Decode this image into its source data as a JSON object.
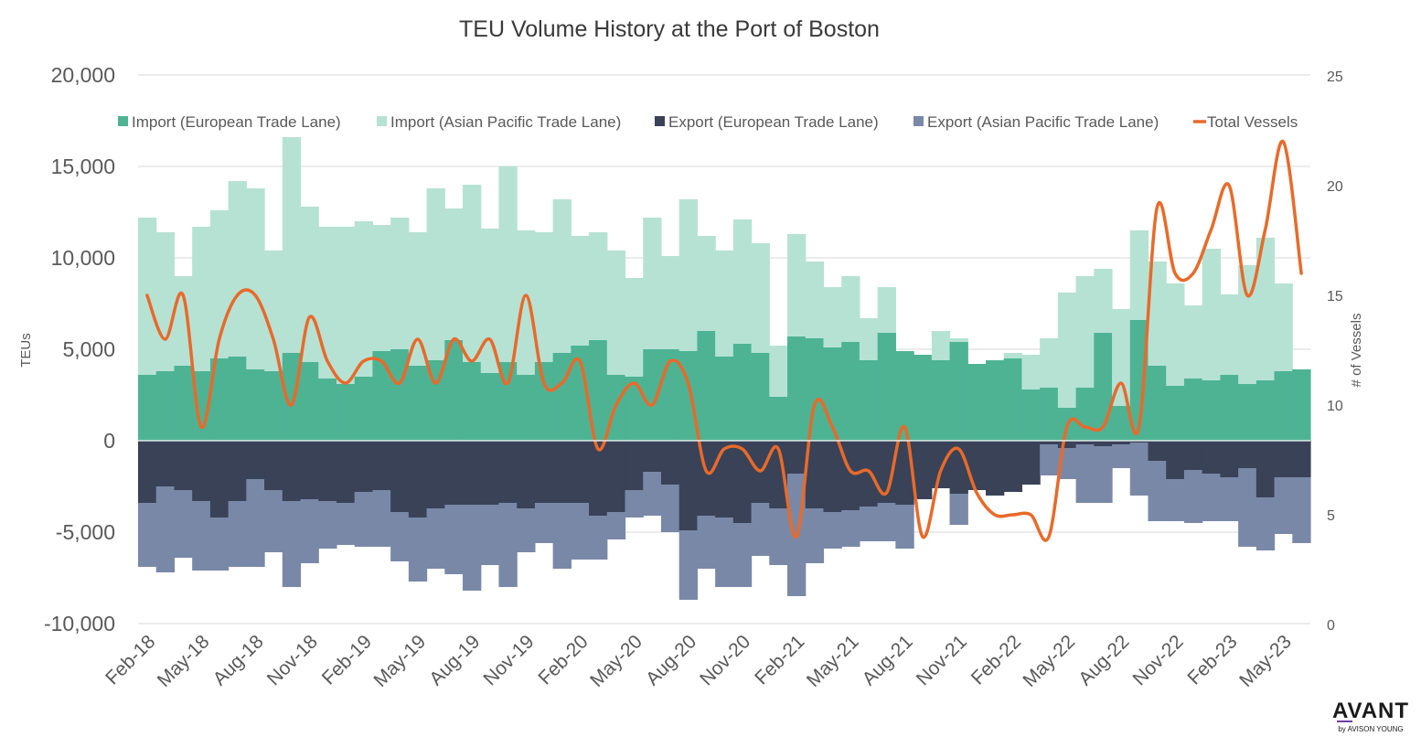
{
  "chart_data": {
    "type": "bar",
    "title": "TEU Volume History at the Port of Boston",
    "ylabel": "TEUs",
    "y2label": "# of Vessels",
    "ylim": [
      -10000,
      20000
    ],
    "y2lim": [
      0,
      25
    ],
    "y_ticks": [
      "20,000",
      "15,000",
      "10,000",
      "5,000",
      "0",
      "-5,000",
      "-10,000"
    ],
    "y2_ticks": [
      "25",
      "20",
      "15",
      "10",
      "5",
      "0"
    ],
    "grid": true,
    "legend_position": "top",
    "x_tick_labels": [
      "Feb-18",
      "May-18",
      "Aug-18",
      "Nov-18",
      "Feb-19",
      "May-19",
      "Aug-19",
      "Nov-19",
      "Feb-20",
      "May-20",
      "Aug-20",
      "Nov-20",
      "Feb-21",
      "May-21",
      "Aug-21",
      "Nov-21",
      "Feb-22",
      "May-22",
      "Aug-22",
      "Nov-22",
      "Feb-23",
      "May-23"
    ],
    "months": [
      "Feb-18",
      "Mar-18",
      "Apr-18",
      "May-18",
      "Jun-18",
      "Jul-18",
      "Aug-18",
      "Sep-18",
      "Oct-18",
      "Nov-18",
      "Dec-18",
      "Jan-19",
      "Feb-19",
      "Mar-19",
      "Apr-19",
      "May-19",
      "Jun-19",
      "Jul-19",
      "Aug-19",
      "Sep-19",
      "Oct-19",
      "Nov-19",
      "Dec-19",
      "Jan-20",
      "Feb-20",
      "Mar-20",
      "Apr-20",
      "May-20",
      "Jun-20",
      "Jul-20",
      "Aug-20",
      "Sep-20",
      "Oct-20",
      "Nov-20",
      "Dec-20",
      "Jan-21",
      "Feb-21",
      "Mar-21",
      "Apr-21",
      "May-21",
      "Jun-21",
      "Jul-21",
      "Aug-21",
      "Sep-21",
      "Oct-21",
      "Nov-21",
      "Dec-21",
      "Jan-22",
      "Feb-22",
      "Mar-22",
      "Apr-22",
      "May-22",
      "Jun-22",
      "Jul-22",
      "Aug-22",
      "Sep-22",
      "Oct-22",
      "Nov-22",
      "Dec-22",
      "Jan-23",
      "Feb-23",
      "Mar-23",
      "Apr-23",
      "May-23",
      "Jun-23"
    ],
    "series": [
      {
        "name": "Import (European Trade Lane)",
        "color": "#4db393",
        "kind": "bar",
        "stack": "import",
        "values": [
          3600,
          3800,
          4100,
          3800,
          4500,
          4600,
          3900,
          3800,
          4800,
          4300,
          3400,
          3100,
          3500,
          4900,
          5000,
          4100,
          4400,
          5500,
          4300,
          3700,
          4300,
          3600,
          4300,
          4800,
          5200,
          5500,
          3600,
          3500,
          5000,
          5000,
          4900,
          6000,
          4600,
          5300,
          4800,
          2400,
          5700,
          5600,
          5100,
          5400,
          4400,
          5900,
          4900,
          4700,
          4400,
          5400,
          4200,
          4400,
          4500,
          2800,
          2900,
          1800,
          2900,
          5900,
          1900,
          6600,
          4100,
          3000,
          3400,
          3300,
          3600,
          3100,
          3300,
          3800,
          3900
        ]
      },
      {
        "name": "Import (Asian Pacific Trade Lane)",
        "color": "#b6e2d4",
        "kind": "bar",
        "stack": "import",
        "values": [
          8600,
          7600,
          4900,
          7900,
          8100,
          9600,
          9900,
          6600,
          11800,
          8500,
          8300,
          8600,
          8500,
          6900,
          7200,
          7300,
          9400,
          7200,
          9700,
          7900,
          10700,
          7900,
          7100,
          8400,
          6000,
          5900,
          6800,
          5400,
          7200,
          5100,
          8300,
          5200,
          5800,
          6800,
          6000,
          2800,
          5600,
          4200,
          3300,
          3600,
          2300,
          2500,
          0,
          0,
          1600,
          200,
          0,
          0,
          300,
          1900,
          2700,
          6300,
          6100,
          3500,
          5300,
          4900,
          5700,
          5600,
          4000,
          7200,
          4400,
          6500,
          7800,
          4800,
          0
        ]
      },
      {
        "name": "Export (European Trade Lane)",
        "color": "#394257",
        "kind": "bar",
        "stack": "export",
        "values": [
          -3400,
          -2500,
          -2700,
          -3300,
          -4200,
          -3300,
          -2100,
          -2700,
          -3300,
          -3200,
          -3300,
          -3400,
          -2800,
          -2700,
          -3900,
          -4200,
          -3700,
          -3500,
          -3500,
          -3500,
          -3400,
          -3700,
          -3400,
          -3400,
          -3400,
          -4100,
          -3900,
          -2700,
          -1700,
          -2400,
          -4900,
          -4100,
          -4200,
          -4500,
          -3400,
          -3700,
          -1800,
          -3700,
          -3900,
          -3800,
          -3600,
          -3400,
          -3500,
          -3200,
          -2600,
          -2900,
          -2700,
          -3000,
          -2800,
          -2400,
          -200,
          -400,
          -200,
          -300,
          -200,
          -100,
          -1100,
          -2100,
          -1600,
          -1800,
          -2000,
          -1500,
          -3100,
          -2000,
          -2000
        ]
      },
      {
        "name": "Export (Asian Pacific Trade Lane)",
        "color": "#7a88a8",
        "kind": "bar",
        "stack": "export",
        "values": [
          -3500,
          -4700,
          -3700,
          -3800,
          -2900,
          -3600,
          -4800,
          -3400,
          -4700,
          -3500,
          -2600,
          -2300,
          -3000,
          -3100,
          -2700,
          -3500,
          -3300,
          -3800,
          -4700,
          -3300,
          -4600,
          -2400,
          -2200,
          -3600,
          -3100,
          -2400,
          -1500,
          -1500,
          -2400,
          -2600,
          -3800,
          -2900,
          -3800,
          -3500,
          -2900,
          -3100,
          -6700,
          -3000,
          -2000,
          -2000,
          -1900,
          -2100,
          -2400,
          0,
          0,
          -1700,
          0,
          0,
          0,
          0,
          -1700,
          -1700,
          -3200,
          -3100,
          -1300,
          -2900,
          -3300,
          -2300,
          -2900,
          -2600,
          -2400,
          -4300,
          -2900,
          -3100,
          -3600
        ]
      },
      {
        "name": "Total Vessels",
        "color": "#e86a2a",
        "kind": "line",
        "axis": "secondary",
        "values": [
          15,
          13,
          15,
          9,
          13,
          15,
          15,
          13,
          10,
          14,
          12,
          11,
          12,
          12,
          11,
          13,
          11,
          13,
          12,
          13,
          11,
          15,
          11,
          11,
          12,
          8,
          10,
          11,
          10,
          12,
          11,
          7,
          8,
          8,
          7,
          8,
          4,
          10,
          9,
          7,
          7,
          6,
          9,
          4,
          7,
          8,
          6,
          5,
          5,
          5,
          4,
          9,
          9,
          9,
          11,
          9,
          19,
          16,
          16,
          18,
          20,
          15,
          18,
          22,
          16
        ]
      }
    ]
  },
  "branding": {
    "logo_main": "AVANT",
    "logo_sub": "by AVISON YOUNG"
  }
}
